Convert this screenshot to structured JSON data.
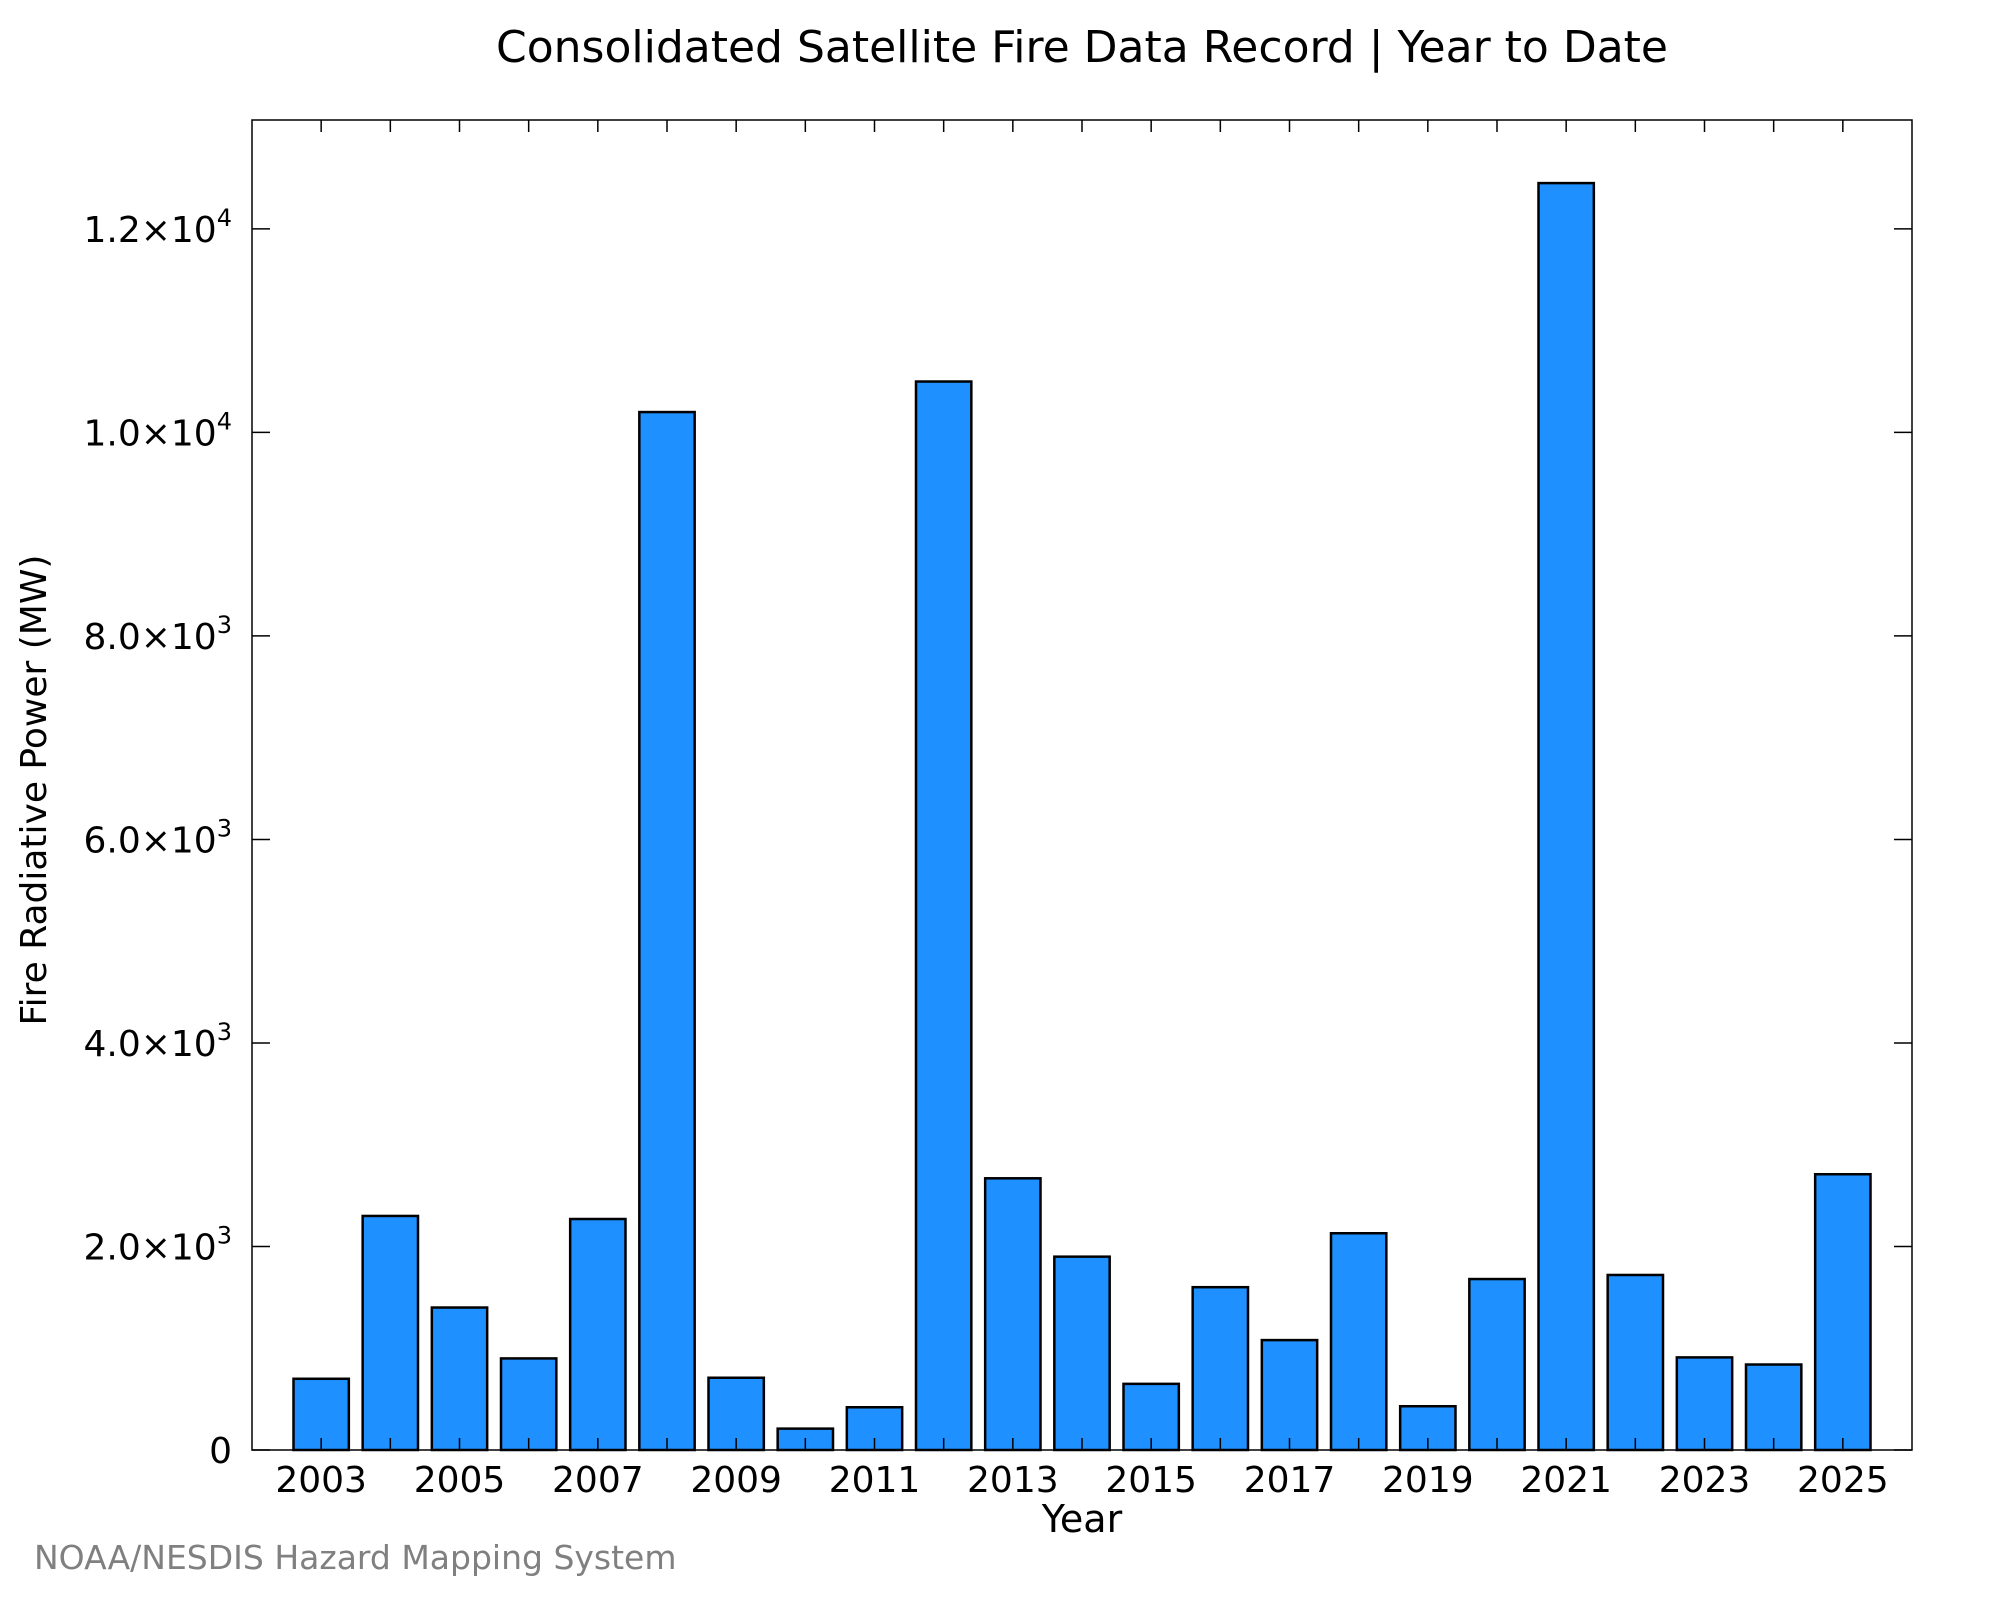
{
  "title": "Consolidated Satellite Fire Data Record | Year to Date",
  "credit": "NOAA/NESDIS Hazard Mapping System",
  "colors": {
    "bar_fill": "#1e90ff",
    "bar_stroke": "#000000",
    "credit": "#808080"
  },
  "chart_data": {
    "type": "bar",
    "title": "Consolidated Satellite Fire Data Record | Year to Date",
    "xlabel": "Year",
    "ylabel": "Fire Radiative Power (MW)",
    "categories": [
      "2003",
      "2004",
      "2005",
      "2006",
      "2007",
      "2008",
      "2009",
      "2010",
      "2011",
      "2012",
      "2013",
      "2014",
      "2015",
      "2016",
      "2017",
      "2018",
      "2019",
      "2020",
      "2021",
      "2022",
      "2023",
      "2024",
      "2025"
    ],
    "values": [
      700,
      2300,
      1400,
      900,
      2270,
      10200,
      710,
      210,
      420,
      10500,
      2670,
      1900,
      650,
      1600,
      1080,
      2130,
      430,
      1680,
      12450,
      1720,
      910,
      840,
      2710
    ],
    "xticks": [
      "2003",
      "2005",
      "2007",
      "2009",
      "2011",
      "2013",
      "2015",
      "2017",
      "2019",
      "2021",
      "2023",
      "2025"
    ],
    "yticks": [
      {
        "value": 0,
        "mantissa": "0",
        "exponent": ""
      },
      {
        "value": 2000,
        "mantissa": "2.0×10",
        "exponent": "3"
      },
      {
        "value": 4000,
        "mantissa": "4.0×10",
        "exponent": "3"
      },
      {
        "value": 6000,
        "mantissa": "6.0×10",
        "exponent": "3"
      },
      {
        "value": 8000,
        "mantissa": "8.0×10",
        "exponent": "3"
      },
      {
        "value": 10000,
        "mantissa": "1.0×10",
        "exponent": "4"
      },
      {
        "value": 12000,
        "mantissa": "1.2×10",
        "exponent": "4"
      }
    ],
    "ylim": [
      0,
      13070
    ],
    "xlim": [
      2002.0,
      2026.0
    ],
    "grid": false,
    "legend": "none"
  }
}
